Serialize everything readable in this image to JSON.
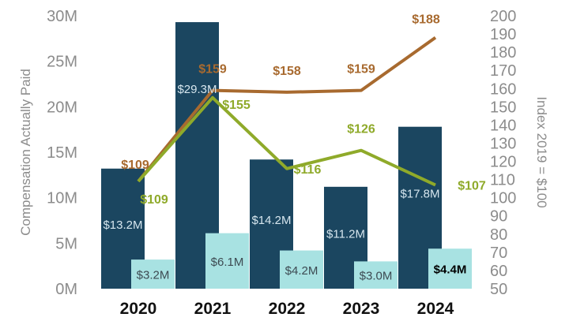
{
  "chart_data": {
    "type": "bar",
    "categories": [
      "2020",
      "2021",
      "2022",
      "2023",
      "2024"
    ],
    "left_axis": {
      "label": "Compensation Actually Paid",
      "ticks": [
        "0M",
        "5M",
        "10M",
        "15M",
        "20M",
        "25M",
        "30M"
      ],
      "ylim": [
        0,
        30
      ]
    },
    "right_axis": {
      "label": "Index 2019 = $100",
      "ticks": [
        "50",
        "60",
        "70",
        "80",
        "90",
        "100",
        "110",
        "120",
        "130",
        "140",
        "150",
        "160",
        "170",
        "180",
        "190",
        "200"
      ],
      "ylim": [
        50,
        200
      ]
    },
    "bar_series": [
      {
        "values": [
          13.2,
          29.3,
          14.2,
          11.2,
          17.8
        ],
        "labels": [
          "$13.2M",
          "$29.3M",
          "$14.2M",
          "$11.2M",
          "$17.8M"
        ],
        "color": "#1b4660",
        "label_color": "#d6e6ee"
      },
      {
        "values": [
          3.2,
          6.1,
          4.2,
          3.0,
          4.4
        ],
        "labels": [
          "$3.2M",
          "$6.1M",
          "$4.2M",
          "$3.0M",
          "$4.4M"
        ],
        "color": "#a8e2e2",
        "label_color": "#3d4a52",
        "bold_last_label": true
      }
    ],
    "line_series": [
      {
        "values": [
          109,
          159,
          158,
          159,
          188
        ],
        "labels": [
          "$109",
          "$159",
          "$158",
          "$159",
          "$188"
        ],
        "color": "#a86a2f"
      },
      {
        "values": [
          109,
          155,
          116,
          126,
          107
        ],
        "labels": [
          "$109",
          "$155",
          "$116",
          "$126",
          "$107"
        ],
        "color": "#8faa2a"
      }
    ],
    "grid": false,
    "legend": "none"
  }
}
